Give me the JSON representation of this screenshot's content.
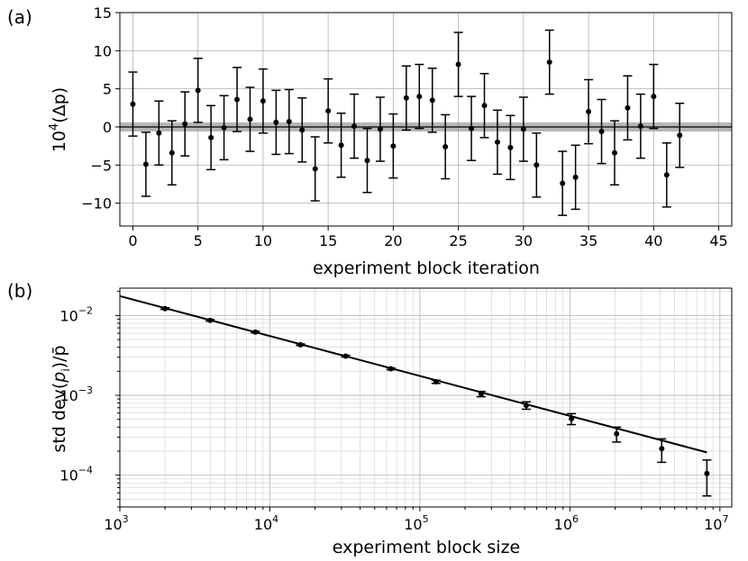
{
  "chart_data": [
    {
      "panel_label": "(a)",
      "type": "scatter",
      "error_bars": true,
      "xlabel": "experiment block iteration",
      "ylabel_prefix": "10",
      "ylabel_exp": "4",
      "ylabel_suffix": "(Δp)",
      "xlim": [
        -1,
        46
      ],
      "ylim": [
        -13,
        15
      ],
      "xticks": [
        0,
        5,
        10,
        15,
        20,
        25,
        30,
        35,
        40,
        45
      ],
      "xtick_labels": [
        "0",
        "5",
        "10",
        "15",
        "20",
        "25",
        "30",
        "35",
        "40",
        "45"
      ],
      "yticks": [
        -10,
        -5,
        0,
        5,
        10,
        15
      ],
      "ytick_labels": [
        "−10",
        "−5",
        "0",
        "5",
        "10",
        "15"
      ],
      "band": {
        "center": 0,
        "halfwidth": 0.6,
        "color": "#9e9e9e"
      },
      "grid": true,
      "x": [
        0,
        1,
        2,
        3,
        4,
        5,
        6,
        7,
        8,
        9,
        10,
        11,
        12,
        13,
        14,
        15,
        16,
        17,
        18,
        19,
        20,
        21,
        22,
        23,
        24,
        25,
        26,
        27,
        28,
        29,
        30,
        31,
        32,
        33,
        34,
        35,
        36,
        37,
        38,
        39,
        40,
        41,
        42
      ],
      "y": [
        3.0,
        -4.9,
        -0.8,
        -3.4,
        0.4,
        4.8,
        -1.4,
        -0.1,
        3.6,
        1.0,
        3.4,
        0.6,
        0.7,
        -0.4,
        -5.5,
        2.1,
        -2.4,
        0.1,
        -4.4,
        -0.3,
        -2.5,
        3.8,
        4.0,
        3.5,
        -2.6,
        8.2,
        -0.2,
        2.8,
        -2.0,
        -2.7,
        -0.3,
        -5.0,
        8.5,
        -7.4,
        -6.6,
        2.0,
        -0.6,
        -3.4,
        2.5,
        0.1,
        4.0,
        -6.3,
        -1.1
      ],
      "yerr": 4.2,
      "marker_color": "#000000"
    },
    {
      "panel_label": "(b)",
      "type": "line",
      "error_bars": true,
      "xscale": "log",
      "yscale": "log",
      "xlabel": "experiment block size",
      "ylabel_prefix": "std dev(",
      "ylabel_mid": "p",
      "ylabel_sub": "i",
      "ylabel_suffix": ")/p̄",
      "xlim": [
        1000,
        12000000
      ],
      "ylim": [
        4e-05,
        0.022
      ],
      "xtick_major": [
        1000,
        10000,
        100000,
        1000000,
        10000000
      ],
      "xtick_labels_base": [
        "10",
        "10",
        "10",
        "10",
        "10"
      ],
      "xtick_labels_exp": [
        "3",
        "4",
        "5",
        "6",
        "7"
      ],
      "ytick_major": [
        0.0001,
        0.001,
        0.01
      ],
      "ytick_labels_base": [
        "10",
        "10",
        "10"
      ],
      "ytick_labels_exp": [
        "−4",
        "−3",
        "−2"
      ],
      "grid": true,
      "points": {
        "x": [
          2000,
          4000,
          8000,
          16000,
          32000,
          64000,
          128000,
          256000,
          512000,
          1024000,
          2048000,
          4096000,
          8192000
        ],
        "y": [
          0.0122,
          0.0087,
          0.0062,
          0.0043,
          0.0031,
          0.00215,
          0.00148,
          0.00104,
          0.00075,
          0.00051,
          0.00033,
          0.000215,
          0.000105
        ],
        "yerr_low": [
          0.0003,
          0.0002,
          0.00015,
          0.0001,
          8e-05,
          6e-05,
          7e-05,
          8e-05,
          8e-05,
          8e-05,
          7e-05,
          7e-05,
          5e-05
        ],
        "yerr_high": [
          0.0003,
          0.0002,
          0.00015,
          0.0001,
          8e-05,
          6e-05,
          7e-05,
          8e-05,
          8e-05,
          8e-05,
          7e-05,
          7e-05,
          5e-05
        ]
      },
      "fit_line": {
        "x": [
          1000,
          8192000
        ],
        "y": [
          0.0175,
          0.000193
        ],
        "color": "#000000"
      }
    }
  ]
}
